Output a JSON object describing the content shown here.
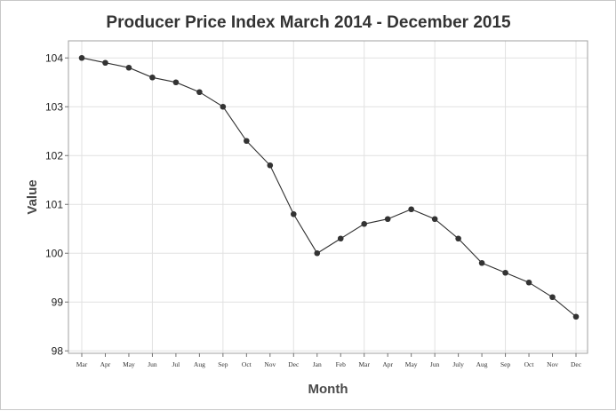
{
  "chart_data": {
    "type": "line",
    "title": "Producer Price Index March 2014 - December 2015",
    "xlabel": "Month",
    "ylabel": "Value",
    "categories": [
      "Mar",
      "Apr",
      "May",
      "Jun",
      "Jul",
      "Aug",
      "Sep",
      "Oct",
      "Nov",
      "Dec",
      "Jan",
      "Feb",
      "Mar",
      "Apr",
      "May",
      "Jun",
      "July",
      "Aug",
      "Sep",
      "Oct",
      "Nov",
      "Dec"
    ],
    "series": [
      {
        "values": [
          104.0,
          103.9,
          103.8,
          103.6,
          103.5,
          103.3,
          103.0,
          102.3,
          101.8,
          100.8,
          100.0,
          100.3,
          100.6,
          100.7,
          100.9,
          100.7,
          100.3,
          99.8,
          99.6,
          99.4,
          99.1,
          98.7
        ]
      }
    ],
    "ylim": [
      97.95,
      104.35
    ],
    "yticks": [
      98,
      99,
      100,
      101,
      102,
      103,
      104
    ],
    "grid": true,
    "legend": "none",
    "colors": {
      "line": "#2f2f2f",
      "marker": "#333333",
      "grid": "#e1e1e1"
    }
  }
}
